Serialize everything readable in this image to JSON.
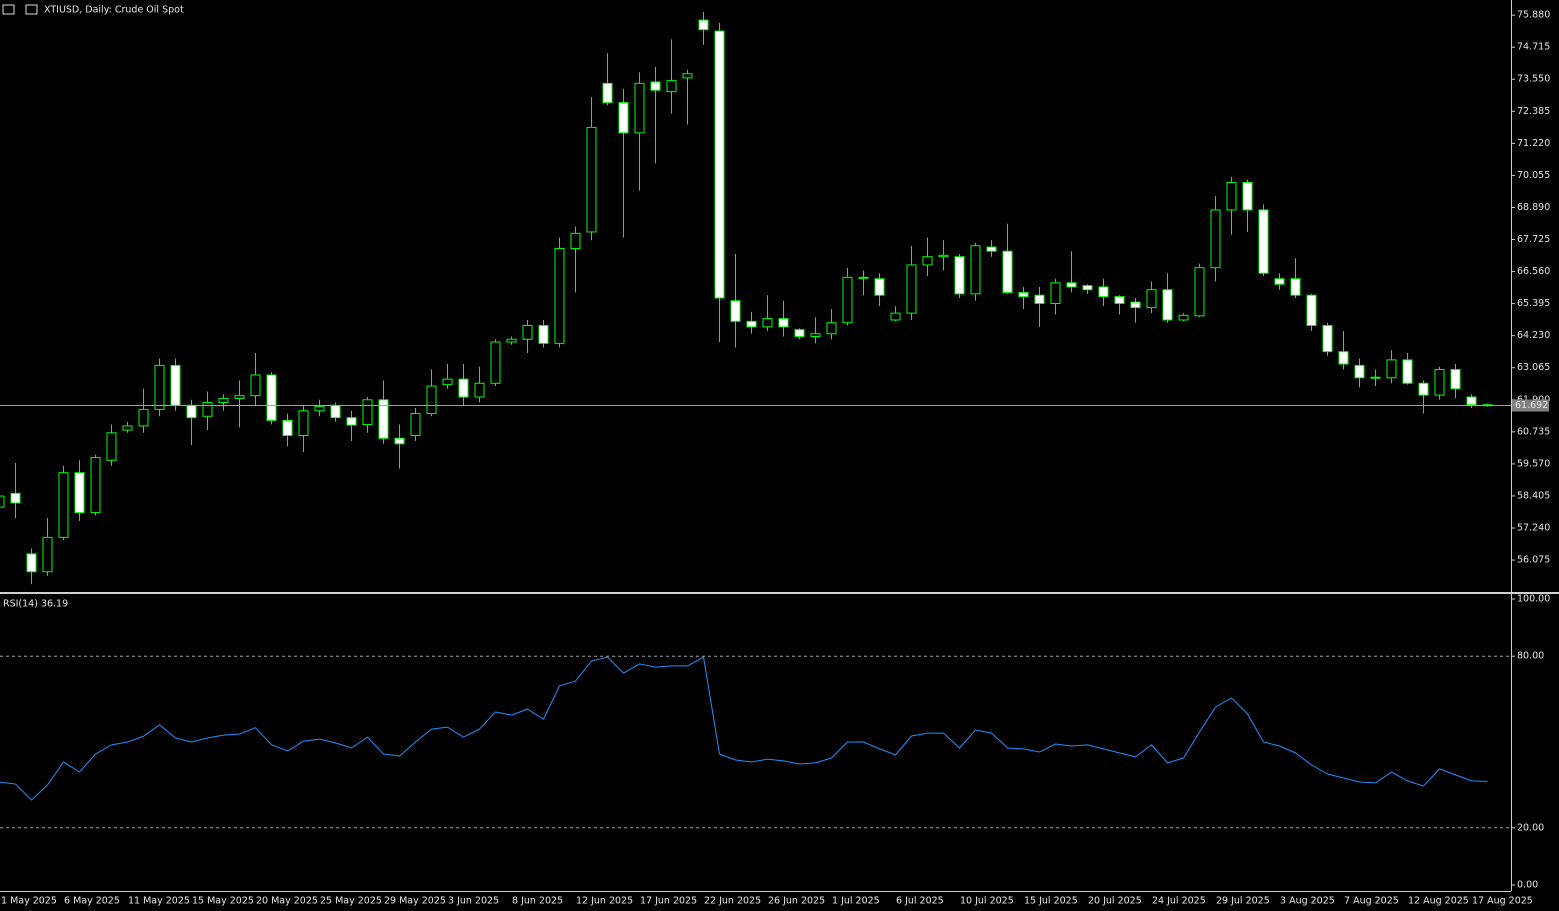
{
  "chart_data": [
    {
      "type": "candlestick",
      "title": "XTIUSD, Daily:  Crude Oil Spot",
      "categories": [
        "1 May 2025",
        null,
        null,
        null,
        "6 May 2025",
        null,
        null,
        null,
        "11 May 2025",
        null,
        null,
        null,
        "15 May 2025",
        null,
        null,
        null,
        "20 May 2025",
        null,
        null,
        null,
        "25 May 2025",
        null,
        null,
        null,
        "29 May 2025",
        null,
        null,
        null,
        "3 Jun 2025",
        null,
        null,
        null,
        "8 Jun 2025",
        null,
        null,
        null,
        "12 Jun 2025",
        null,
        null,
        null,
        "17 Jun 2025",
        null,
        null,
        null,
        "22 Jun 2025",
        null,
        null,
        null,
        "26 Jun 2025",
        null,
        null,
        null,
        "1 Jul 2025",
        null,
        null,
        null,
        "6 Jul 2025",
        null,
        null,
        null,
        "10 Jul 2025",
        null,
        null,
        null,
        "15 Jul 2025",
        null,
        null,
        null,
        "20 Jul 2025",
        null,
        null,
        null,
        "24 Jul 2025",
        null,
        null,
        null,
        "29 Jul 2025",
        null,
        null,
        null,
        "3 Aug 2025",
        null,
        null,
        null,
        "7 Aug 2025",
        null,
        null,
        null,
        "12 Aug 2025",
        null,
        null,
        null,
        "17 Aug 2025",
        null
      ],
      "open": [
        58.0,
        58.5,
        56.3,
        55.65,
        56.9,
        59.25,
        57.8,
        59.7,
        60.8,
        60.95,
        61.55,
        63.15,
        61.7,
        61.3,
        61.8,
        61.95,
        62.05,
        62.8,
        61.15,
        60.6,
        61.5,
        61.7,
        61.25,
        61.0,
        61.9,
        60.5,
        60.6,
        61.4,
        62.45,
        62.65,
        62.0,
        62.5,
        64.0,
        64.1,
        64.6,
        63.95,
        67.4,
        68.0,
        73.4,
        72.7,
        71.6,
        73.45,
        73.1,
        73.6,
        75.7,
        75.3,
        65.5,
        64.75,
        64.55,
        64.85,
        64.45,
        64.2,
        64.3,
        64.7,
        66.35,
        66.3,
        64.8,
        65.05,
        66.8,
        67.1,
        67.1,
        65.75,
        67.45,
        67.3,
        65.8,
        65.7,
        65.4,
        66.15,
        66.05,
        66.0,
        65.65,
        65.45,
        65.25,
        65.9,
        64.8,
        64.95,
        66.7,
        68.8,
        69.8,
        68.8,
        66.3,
        66.3,
        65.7,
        64.6,
        63.65,
        63.15,
        62.7,
        62.7,
        63.35,
        62.5,
        62.07,
        63.0,
        62.0,
        61.72
      ],
      "high": [
        58.7,
        59.6,
        56.5,
        57.6,
        59.5,
        59.7,
        59.9,
        61.0,
        61.1,
        62.3,
        63.4,
        63.4,
        61.9,
        62.2,
        62.1,
        62.6,
        63.6,
        62.9,
        61.4,
        61.7,
        61.9,
        61.8,
        61.5,
        62.0,
        62.6,
        61.0,
        61.6,
        63.0,
        63.2,
        63.2,
        63.1,
        64.1,
        64.2,
        64.8,
        64.8,
        67.8,
        68.2,
        72.9,
        74.5,
        73.2,
        73.8,
        74.0,
        75.0,
        73.9,
        76.0,
        75.6,
        67.2,
        65.1,
        65.7,
        65.5,
        64.5,
        64.9,
        65.2,
        66.7,
        66.6,
        66.5,
        65.3,
        67.5,
        67.8,
        67.7,
        67.2,
        67.6,
        67.7,
        68.3,
        66.0,
        66.0,
        66.3,
        67.3,
        66.1,
        66.3,
        65.7,
        65.6,
        66.2,
        66.5,
        65.05,
        66.85,
        69.3,
        70.0,
        69.9,
        69.0,
        66.5,
        67.05,
        65.75,
        64.7,
        64.4,
        63.4,
        63.0,
        63.7,
        63.6,
        62.6,
        63.1,
        63.2,
        62.1,
        61.76
      ],
      "low": [
        57.8,
        57.6,
        55.2,
        55.5,
        56.8,
        57.5,
        57.7,
        59.5,
        60.7,
        60.7,
        61.3,
        61.5,
        60.25,
        60.8,
        61.5,
        60.9,
        61.7,
        61.0,
        60.2,
        60.0,
        61.3,
        61.1,
        60.4,
        60.7,
        60.3,
        59.4,
        60.4,
        61.3,
        62.3,
        61.7,
        61.8,
        62.4,
        63.9,
        63.6,
        63.8,
        63.8,
        65.8,
        67.7,
        72.6,
        67.8,
        69.5,
        70.5,
        72.3,
        71.9,
        74.8,
        64.0,
        63.8,
        64.3,
        64.4,
        64.2,
        64.1,
        63.95,
        64.1,
        64.6,
        65.7,
        65.3,
        64.75,
        64.8,
        66.4,
        66.6,
        65.6,
        65.5,
        67.1,
        65.75,
        65.2,
        64.55,
        65.0,
        65.8,
        65.75,
        65.3,
        65.0,
        64.7,
        65.05,
        64.7,
        64.75,
        64.9,
        66.2,
        67.9,
        68.0,
        66.4,
        65.9,
        65.6,
        64.4,
        63.5,
        63.0,
        62.35,
        62.4,
        62.5,
        62.45,
        61.4,
        61.9,
        61.95,
        61.6,
        61.65
      ],
      "close": [
        58.4,
        58.15,
        55.65,
        56.9,
        59.25,
        57.8,
        59.8,
        60.7,
        60.95,
        61.55,
        63.15,
        61.7,
        61.25,
        61.8,
        61.95,
        62.05,
        62.8,
        61.15,
        60.6,
        61.5,
        61.65,
        61.25,
        60.98,
        61.9,
        60.5,
        60.3,
        61.4,
        62.4,
        62.65,
        62.0,
        62.5,
        64.0,
        64.1,
        64.6,
        63.95,
        67.4,
        67.95,
        71.8,
        72.7,
        71.6,
        73.4,
        73.15,
        73.5,
        73.75,
        75.35,
        65.6,
        64.75,
        64.55,
        64.85,
        64.55,
        64.2,
        64.3,
        64.7,
        66.35,
        66.35,
        65.7,
        65.05,
        66.8,
        67.1,
        67.15,
        65.75,
        67.5,
        67.3,
        65.8,
        65.65,
        65.4,
        66.15,
        66.0,
        65.9,
        65.65,
        65.4,
        65.25,
        65.9,
        64.8,
        64.97,
        66.7,
        68.8,
        69.8,
        68.8,
        66.5,
        66.1,
        65.7,
        64.6,
        63.65,
        63.2,
        62.7,
        62.72,
        63.35,
        62.5,
        62.07,
        63.0,
        62.3,
        61.72,
        61.69
      ],
      "last_price": 61.692,
      "up_color": "#000000",
      "down_color": "#ffffff",
      "wick_color": "#00ff00",
      "ylim": [
        54.95,
        76.43
      ],
      "yticks": [
        {
          "value": 75.88,
          "label": "75.880"
        },
        {
          "value": 74.715,
          "label": "74.715"
        },
        {
          "value": 73.55,
          "label": "73.550"
        },
        {
          "value": 72.385,
          "label": "72.385"
        },
        {
          "value": 71.22,
          "label": "71.220"
        },
        {
          "value": 70.055,
          "label": "70.055"
        },
        {
          "value": 68.89,
          "label": "68.890"
        },
        {
          "value": 67.725,
          "label": "67.725"
        },
        {
          "value": 66.56,
          "label": "66.560"
        },
        {
          "value": 65.395,
          "label": "65.395"
        },
        {
          "value": 64.23,
          "label": "64.230"
        },
        {
          "value": 63.065,
          "label": "63.065"
        },
        {
          "value": 61.9,
          "label": "61.900"
        },
        {
          "value": 60.735,
          "label": "60.735"
        },
        {
          "value": 59.57,
          "label": "59.570"
        },
        {
          "value": 58.405,
          "label": "58.405"
        },
        {
          "value": 57.24,
          "label": "57.240"
        },
        {
          "value": 56.075,
          "label": "56.075"
        }
      ]
    },
    {
      "type": "line",
      "title": "RSI(14) 36.19",
      "color": "#1e90ff",
      "values": [
        36,
        35.3,
        29.7,
        35,
        43,
        39.5,
        45.8,
        49,
        50,
        52,
        56,
        51.4,
        50,
        51.4,
        52.4,
        52.8,
        55,
        49,
        46.9,
        50.3,
        51,
        49.7,
        47.9,
        51.7,
        45.8,
        45.1,
        50,
        54.5,
        55.2,
        51.7,
        54.5,
        60.5,
        59.4,
        61.5,
        58,
        69.6,
        71.3,
        78.3,
        79.7,
        74.1,
        77.3,
        76.2,
        76.6,
        76.6,
        79.7,
        45.8,
        43.7,
        43,
        44,
        43.4,
        42.3,
        42.7,
        44.4,
        50,
        50,
        47.6,
        45.5,
        52.1,
        53.1,
        53.1,
        47.9,
        54.2,
        53.1,
        47.9,
        47.6,
        46.5,
        49.3,
        48.6,
        49,
        47.6,
        46.2,
        44.8,
        49,
        42.7,
        44.4,
        53.5,
        62.2,
        65.4,
        59.8,
        50,
        48.6,
        46.2,
        42,
        38.8,
        37.4,
        36,
        35.7,
        39.5,
        36.4,
        34.6,
        40.6,
        38.5,
        36.4,
        36.19
      ],
      "ylim": [
        0,
        100
      ],
      "yticks": [
        {
          "value": 100,
          "label": "100.00"
        },
        {
          "value": 80,
          "label": "80.00"
        },
        {
          "value": 20,
          "label": "20.00"
        },
        {
          "value": 0,
          "label": "0.00"
        }
      ]
    }
  ]
}
